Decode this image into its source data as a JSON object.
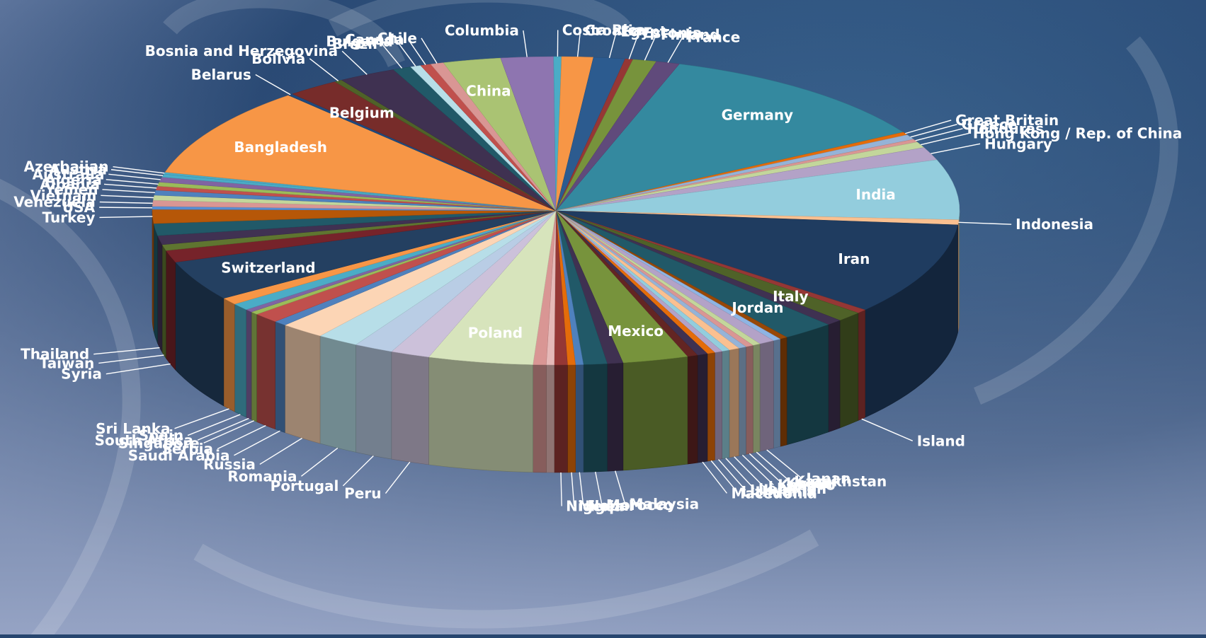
{
  "chart_data": {
    "type": "pie",
    "style": "3d-exploded-perspective",
    "title": "",
    "legend": "none",
    "series": [
      {
        "label": "Germany",
        "value": 11.0,
        "color": "#34899f",
        "label_pos": "inside"
      },
      {
        "label": "Great Britain",
        "value": 0.3,
        "color": "#e46c0a",
        "label_pos": "outside"
      },
      {
        "label": "Greece",
        "value": 0.5,
        "color": "#95b3d7",
        "label_pos": "outside"
      },
      {
        "label": "Honduras",
        "value": 0.3,
        "color": "#d99694",
        "label_pos": "outside"
      },
      {
        "label": "Hong Kong / Rep. of China",
        "value": 0.6,
        "color": "#c3d69b",
        "label_pos": "outside"
      },
      {
        "label": "Hungary",
        "value": 1.3,
        "color": "#b3a2c7",
        "label_pos": "outside"
      },
      {
        "label": "India",
        "value": 6.0,
        "color": "#93cddd",
        "label_pos": "inside"
      },
      {
        "label": "Indonesia",
        "value": 0.5,
        "color": "#fac090",
        "label_pos": "outside"
      },
      {
        "label": "Iran",
        "value": 9.2,
        "color": "#1f3c60",
        "label_pos": "inside"
      },
      {
        "label": "Island",
        "value": 0.4,
        "color": "#953735",
        "label_pos": "outside"
      },
      {
        "label": "Italy",
        "value": 1.0,
        "color": "#4f6228",
        "label_pos": "inside"
      },
      {
        "label": "",
        "value": 0.6,
        "color": "#3f3151",
        "label_pos": "none"
      },
      {
        "label": "Jordan",
        "value": 2.0,
        "color": "#215968",
        "label_pos": "inside"
      },
      {
        "label": "",
        "value": 0.3,
        "color": "#984807",
        "label_pos": "none"
      },
      {
        "label": "",
        "value": 0.3,
        "color": "#8eb4e3",
        "label_pos": "none"
      },
      {
        "label": "Japan",
        "value": 0.6,
        "color": "#b3a2c7",
        "label_pos": "outside"
      },
      {
        "label": "Kazakhstan",
        "value": 0.3,
        "color": "#c3d69b",
        "label_pos": "outside"
      },
      {
        "label": "Korea",
        "value": 0.3,
        "color": "#d99694",
        "label_pos": "outside"
      },
      {
        "label": "Kosovo",
        "value": 0.3,
        "color": "#95b3d7",
        "label_pos": "outside"
      },
      {
        "label": "Latvia",
        "value": 0.4,
        "color": "#fac090",
        "label_pos": "outside"
      },
      {
        "label": "Lebanon",
        "value": 0.3,
        "color": "#93cddd",
        "label_pos": "outside"
      },
      {
        "label": "Libya",
        "value": 0.3,
        "color": "#b3a2c7",
        "label_pos": "outside"
      },
      {
        "label": "Lithuania",
        "value": 0.3,
        "color": "#e46c0a",
        "label_pos": "outside"
      },
      {
        "label": "Macedonia",
        "value": 0.4,
        "color": "#3f3151",
        "label_pos": "outside"
      },
      {
        "label": "",
        "value": 0.4,
        "color": "#632523",
        "label_pos": "none"
      },
      {
        "label": "Mexico",
        "value": 2.5,
        "color": "#77933c",
        "label_pos": "inside"
      },
      {
        "label": "Malaysia",
        "value": 0.6,
        "color": "#3f3151",
        "label_pos": "outside"
      },
      {
        "label": "Morocco",
        "value": 0.9,
        "color": "#215968",
        "label_pos": "outside"
      },
      {
        "label": "Nepal",
        "value": 0.3,
        "color": "#4f81bd",
        "label_pos": "outside"
      },
      {
        "label": "Niger",
        "value": 0.3,
        "color": "#e46c0a",
        "label_pos": "outside"
      },
      {
        "label": "Nigeria",
        "value": 0.5,
        "color": "#953735",
        "label_pos": "outside"
      },
      {
        "label": "",
        "value": 0.3,
        "color": "#e6b9b8",
        "label_pos": "none"
      },
      {
        "label": "",
        "value": 0.5,
        "color": "#d99694",
        "label_pos": "none"
      },
      {
        "label": "Poland",
        "value": 4.0,
        "color": "#d7e4bc",
        "label_pos": "inside"
      },
      {
        "label": "Peru",
        "value": 1.5,
        "color": "#ccc1da",
        "label_pos": "outside"
      },
      {
        "label": "Portugal",
        "value": 1.5,
        "color": "#b9cde5",
        "label_pos": "outside"
      },
      {
        "label": "Romania",
        "value": 1.6,
        "color": "#b7dee8",
        "label_pos": "outside"
      },
      {
        "label": "Russia",
        "value": 1.7,
        "color": "#fcd5b5",
        "label_pos": "outside"
      },
      {
        "label": "Saudi Arabia",
        "value": 0.5,
        "color": "#4f81bd",
        "label_pos": "outside"
      },
      {
        "label": "Serbia",
        "value": 1.0,
        "color": "#c0504d",
        "label_pos": "outside"
      },
      {
        "label": "Singapore",
        "value": 0.3,
        "color": "#9bbb59",
        "label_pos": "outside"
      },
      {
        "label": "South Africa",
        "value": 0.3,
        "color": "#8064a2",
        "label_pos": "outside"
      },
      {
        "label": "Spain",
        "value": 0.7,
        "color": "#4bacc6",
        "label_pos": "outside"
      },
      {
        "label": "Sri Lanka",
        "value": 0.7,
        "color": "#f79646",
        "label_pos": "outside"
      },
      {
        "label": "Switzerland",
        "value": 4.0,
        "color": "#244061",
        "label_pos": "inside"
      },
      {
        "label": "Syria",
        "value": 1.2,
        "color": "#76232a",
        "label_pos": "outside"
      },
      {
        "label": "Taiwan",
        "value": 0.6,
        "color": "#5f7530",
        "label_pos": "outside"
      },
      {
        "label": "Thailand",
        "value": 0.9,
        "color": "#403152",
        "label_pos": "outside"
      },
      {
        "label": "",
        "value": 1.2,
        "color": "#215968",
        "label_pos": "none"
      },
      {
        "label": "Turkey",
        "value": 1.4,
        "color": "#b65708",
        "label_pos": "outside"
      },
      {
        "label": "USA",
        "value": 0.3,
        "color": "#558ed5",
        "label_pos": "outside"
      },
      {
        "label": "Venezuela",
        "value": 0.6,
        "color": "#d99694",
        "label_pos": "outside"
      },
      {
        "label": "Vietnam",
        "value": 0.5,
        "color": "#c3d69b",
        "label_pos": "outside"
      },
      {
        "label": "Yemen",
        "value": 0.5,
        "color": "#4f81bd",
        "label_pos": "outside"
      },
      {
        "label": "Albania",
        "value": 0.4,
        "color": "#c0504d",
        "label_pos": "outside"
      },
      {
        "label": "Algeria",
        "value": 0.4,
        "color": "#9bbb59",
        "label_pos": "outside"
      },
      {
        "label": "Australia",
        "value": 0.5,
        "color": "#8064a2",
        "label_pos": "outside"
      },
      {
        "label": "Austria",
        "value": 0.3,
        "color": "#4bacc6",
        "label_pos": "outside"
      },
      {
        "label": "Azerbaijan",
        "value": 0.2,
        "color": "#4bacc6",
        "label_pos": "outside"
      },
      {
        "label": "Bangladesh",
        "value": 9.0,
        "color": "#f79646",
        "label_pos": "inside"
      },
      {
        "label": "Belarus",
        "value": 0.2,
        "color": "#1f497d",
        "label_pos": "outside"
      },
      {
        "label": "Belgium",
        "value": 2.0,
        "color": "#772c2a",
        "label_pos": "inside"
      },
      {
        "label": "Bolivia",
        "value": 0.3,
        "color": "#4f6228",
        "label_pos": "outside"
      },
      {
        "label": "Bosnia and Herzegovina",
        "value": 2.2,
        "color": "#3f3151",
        "label_pos": "outside"
      },
      {
        "label": "Brazil",
        "value": 0.7,
        "color": "#215968",
        "label_pos": "outside"
      },
      {
        "label": "Bulgaria",
        "value": 0.4,
        "color": "#b7dee8",
        "label_pos": "outside"
      },
      {
        "label": "Canada",
        "value": 0.4,
        "color": "#c0504d",
        "label_pos": "outside"
      },
      {
        "label": "Chile",
        "value": 0.5,
        "color": "#d99694",
        "label_pos": "outside"
      },
      {
        "label": "China",
        "value": 2.2,
        "color": "#aac373",
        "label_pos": "inside"
      },
      {
        "label": "Columbia",
        "value": 2.0,
        "color": "#8e75b0",
        "label_pos": "outside"
      },
      {
        "label": "Costa Rica",
        "value": 0.3,
        "color": "#4bacc6",
        "label_pos": "outside"
      },
      {
        "label": "Croatia",
        "value": 1.2,
        "color": "#f79646",
        "label_pos": "outside"
      },
      {
        "label": "Egypt",
        "value": 1.2,
        "color": "#2c5b8f",
        "label_pos": "outside"
      },
      {
        "label": "Estonia",
        "value": 0.3,
        "color": "#953735",
        "label_pos": "outside"
      },
      {
        "label": "Finland",
        "value": 0.9,
        "color": "#77933c",
        "label_pos": "outside"
      },
      {
        "label": "France",
        "value": 0.9,
        "color": "#604a7b",
        "label_pos": "outside"
      }
    ],
    "outer_label_positions": "mixed"
  }
}
